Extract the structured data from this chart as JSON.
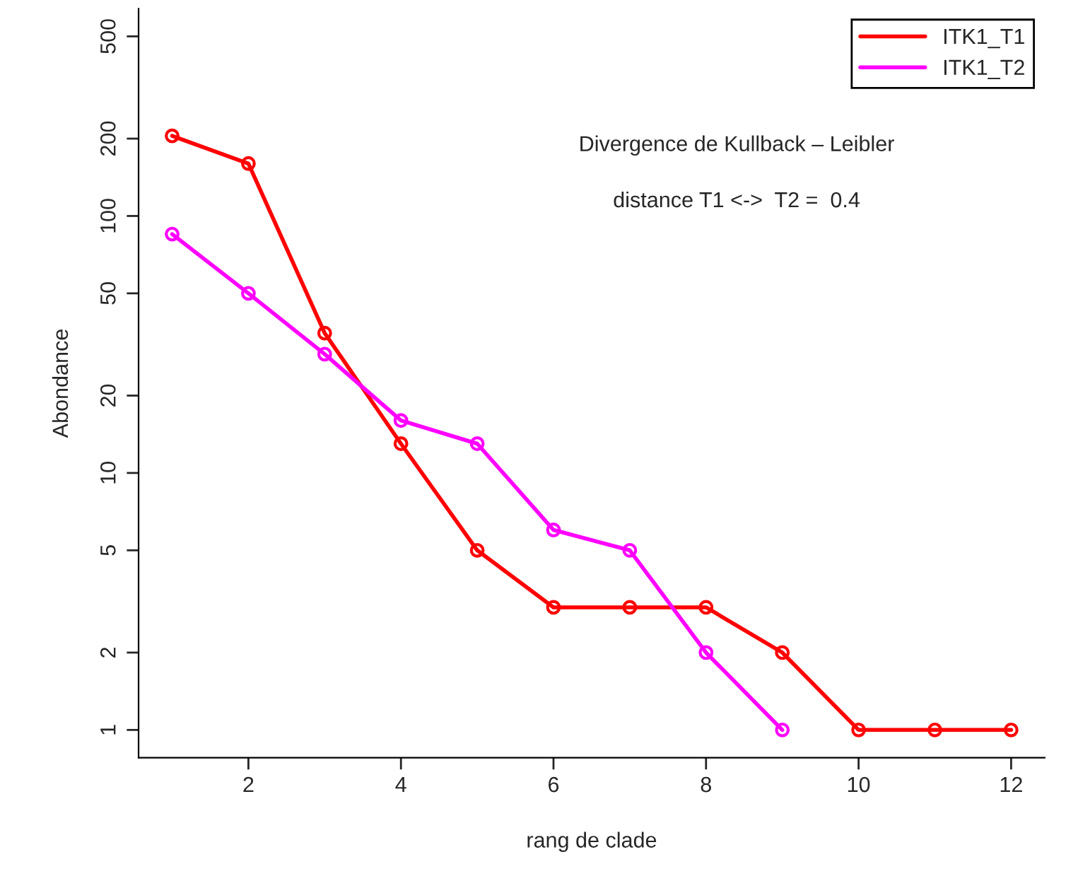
{
  "chart_data": {
    "type": "line",
    "xlabel": "rang de clade",
    "ylabel": "Abondance",
    "x": [
      1,
      2,
      3,
      4,
      5,
      6,
      7,
      8,
      9,
      10,
      11,
      12
    ],
    "series": [
      {
        "name": "ITK1_T1",
        "color": "#ff0000",
        "values": [
          205,
          160,
          35,
          13,
          5,
          3,
          3,
          3,
          2,
          1,
          1,
          1
        ]
      },
      {
        "name": "ITK1_T2",
        "color": "#ff00ff",
        "values": [
          85,
          50,
          29,
          16,
          13,
          6,
          5,
          2,
          1,
          null,
          null,
          null
        ]
      }
    ],
    "annotations": [
      "Divergence de Kullback – Leibler",
      "distance T1 <->  T2 =  0.4"
    ],
    "log": "y",
    "xlim": [
      0.56,
      12.44
    ],
    "ylim": [
      0.78,
      640
    ],
    "xticks": [
      2,
      4,
      6,
      8,
      10,
      12
    ],
    "yticks": [
      1,
      2,
      5,
      10,
      20,
      50,
      100,
      200,
      500
    ],
    "legend": "top right",
    "marker": "circle",
    "line_style": "solid",
    "grid": false
  }
}
